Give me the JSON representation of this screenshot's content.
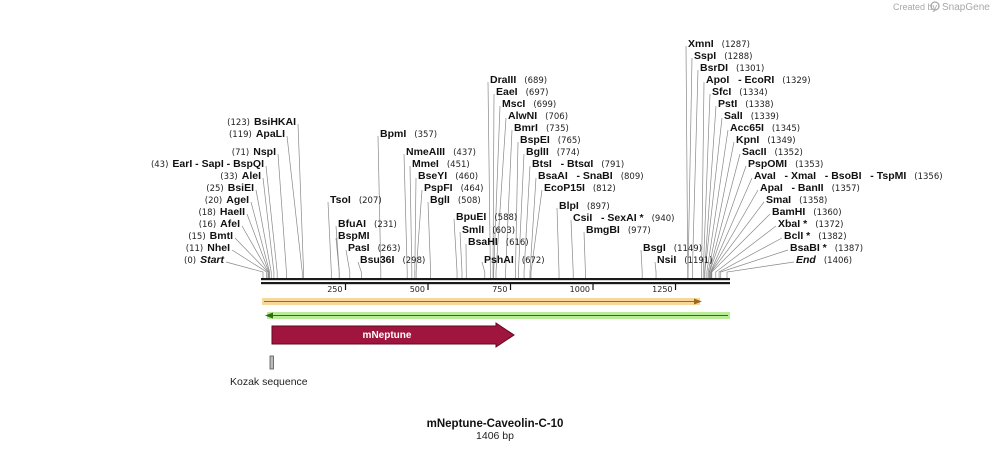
{
  "branding": {
    "created_by": "Created by",
    "brand": "SnapGene",
    "logo_icon": "snapgene-icon"
  },
  "plasmid": {
    "name": "mNeptune-Caveolin-C-10",
    "length_label": "1406 bp",
    "length": 1406
  },
  "axis": {
    "ticks": [
      250,
      500,
      750,
      1000,
      1250
    ]
  },
  "colors": {
    "backbone": "#1a1a1a",
    "orange_strand": "#e8a33a",
    "green_strand": "#7ec850",
    "mneptune": "#a0153e",
    "kozak": "#bbbbbb",
    "leader": "#888888"
  },
  "strands": [
    {
      "name": "orange-strand",
      "start": 0,
      "end": 1335,
      "direction": "forward",
      "color": "#e8a33a"
    },
    {
      "name": "green-strand",
      "start": 0,
      "end": 1406,
      "direction": "reverse",
      "color": "#7ec850"
    }
  ],
  "features": [
    {
      "name": "mNeptune",
      "start": 20,
      "end": 740,
      "direction": "forward",
      "color": "#a0153e"
    },
    {
      "name": "Kozak sequence",
      "start": 0,
      "end": 10,
      "color": "#bbbbbb"
    }
  ],
  "sites_left": [
    {
      "name": "BsiHKAI",
      "pos": "(123)",
      "site": 123
    },
    {
      "name": "ApaLI",
      "pos": "(119)",
      "site": 119
    },
    {
      "name": "NspI",
      "pos": "(71)",
      "site": 71
    },
    {
      "name": "EarI   - SapI   - BspQI",
      "pos": "(43)",
      "site": 43
    },
    {
      "name": "AleI",
      "pos": "(33)",
      "site": 33
    },
    {
      "name": "BsiEI",
      "pos": "(25)",
      "site": 25
    },
    {
      "name": "AgeI",
      "pos": "(20)",
      "site": 20
    },
    {
      "name": "HaeII",
      "pos": "(18)",
      "site": 18
    },
    {
      "name": "AfeI",
      "pos": "(16)",
      "site": 16
    },
    {
      "name": "BmtI",
      "pos": "(15)",
      "site": 15
    },
    {
      "name": "NheI",
      "pos": "(11)",
      "site": 11
    },
    {
      "name": "Start",
      "pos": "(0)",
      "site": 0,
      "italic": true
    }
  ],
  "sites_right": [
    {
      "name": "BpmI",
      "pos": "(357)",
      "site": 357
    },
    {
      "name": "DraIII",
      "pos": "(689)",
      "site": 689
    },
    {
      "name": "EaeI",
      "pos": "(697)",
      "site": 697
    },
    {
      "name": "MscI",
      "pos": "(699)",
      "site": 699
    },
    {
      "name": "AlwNI",
      "pos": "(706)",
      "site": 706
    },
    {
      "name": "BmrI",
      "pos": "(735)",
      "site": 735
    },
    {
      "name": "BspEI",
      "pos": "(765)",
      "site": 765
    },
    {
      "name": "BglII",
      "pos": "(774)",
      "site": 774
    },
    {
      "name": "BtsI   - BtsαI",
      "pos": "(791)",
      "site": 791
    },
    {
      "name": "BsaAI   - SnaBI",
      "pos": "(809)",
      "site": 809
    },
    {
      "name": "EcoP15I",
      "pos": "(812)",
      "site": 812
    },
    {
      "name": "BlpI",
      "pos": "(897)",
      "site": 897
    },
    {
      "name": "CsiI   - SexAI *",
      "pos": "(940)",
      "site": 940
    },
    {
      "name": "BmgBI",
      "pos": "(977)",
      "site": 977
    },
    {
      "name": "BsgI",
      "pos": "(1149)",
      "site": 1149
    },
    {
      "name": "NsiI",
      "pos": "(1191)",
      "site": 1191
    },
    {
      "name": "NmeAIII",
      "pos": "(437)",
      "site": 437
    },
    {
      "name": "MmeI",
      "pos": "(451)",
      "site": 451
    },
    {
      "name": "BseYI",
      "pos": "(460)",
      "site": 460
    },
    {
      "name": "PspFI",
      "pos": "(464)",
      "site": 464
    },
    {
      "name": "BglI",
      "pos": "(508)",
      "site": 508
    },
    {
      "name": "BpuEI",
      "pos": "(588)",
      "site": 588
    },
    {
      "name": "SmlI",
      "pos": "(603)",
      "site": 603
    },
    {
      "name": "BsaHI",
      "pos": "(616)",
      "site": 616
    },
    {
      "name": "PshAI",
      "pos": "(672)",
      "site": 672
    },
    {
      "name": "TsoI",
      "pos": "(207)",
      "site": 207
    },
    {
      "name": "BfuAI",
      "pos": "(231)",
      "site": 231
    },
    {
      "name": "BspMI",
      "pos": "",
      "site": 231
    },
    {
      "name": "PasI",
      "pos": "(263)",
      "site": 263
    },
    {
      "name": "Bsu36I",
      "pos": "(298)",
      "site": 298
    },
    {
      "name": "XmnI",
      "pos": "(1287)",
      "site": 1287
    },
    {
      "name": "SspI",
      "pos": "(1288)",
      "site": 1288
    },
    {
      "name": "BsrDI",
      "pos": "(1301)",
      "site": 1301
    },
    {
      "name": "ApoI   - EcoRI",
      "pos": "(1329)",
      "site": 1329
    },
    {
      "name": "SfcI",
      "pos": "(1334)",
      "site": 1334
    },
    {
      "name": "PstI",
      "pos": "(1338)",
      "site": 1338
    },
    {
      "name": "SalI",
      "pos": "(1339)",
      "site": 1339
    },
    {
      "name": "Acc65I",
      "pos": "(1345)",
      "site": 1345
    },
    {
      "name": "KpnI",
      "pos": "(1349)",
      "site": 1349
    },
    {
      "name": "SacII",
      "pos": "(1352)",
      "site": 1352
    },
    {
      "name": "PspOMI",
      "pos": "(1353)",
      "site": 1353
    },
    {
      "name": "AvaI   - XmaI   - BsoBI   - TspMI",
      "pos": "(1356)",
      "site": 1356
    },
    {
      "name": "ApaI   - BanII",
      "pos": "(1357)",
      "site": 1357
    },
    {
      "name": "SmaI",
      "pos": "(1358)",
      "site": 1358
    },
    {
      "name": "BamHI",
      "pos": "(1360)",
      "site": 1360
    },
    {
      "name": "XbaI *",
      "pos": "(1372)",
      "site": 1372
    },
    {
      "name": "BclI *",
      "pos": "(1382)",
      "site": 1382
    },
    {
      "name": "BsaBI *",
      "pos": "(1387)",
      "site": 1387
    },
    {
      "name": "End",
      "pos": "(1406)",
      "site": 1406,
      "italic": true
    }
  ]
}
